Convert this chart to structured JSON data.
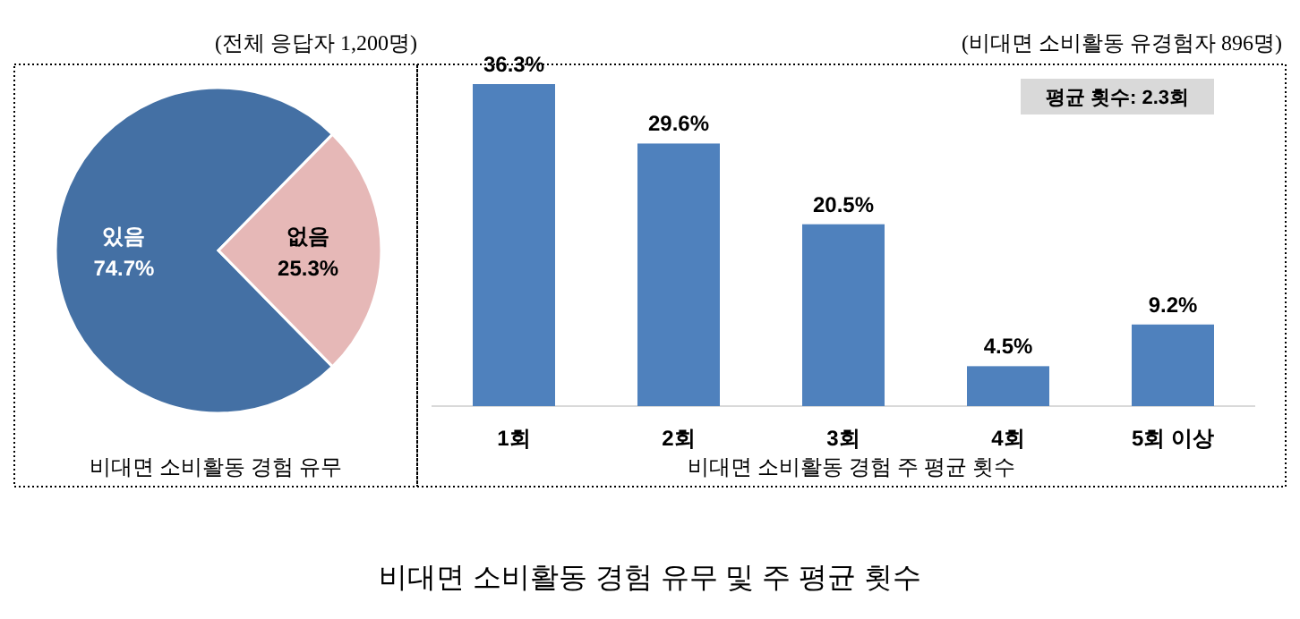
{
  "chart_data": [
    {
      "type": "pie",
      "subtitle": "(전체 응답자 1,200명)",
      "xlabel": "비대면 소비활동 경험 유무",
      "categories": [
        "있음",
        "없음"
      ],
      "values": [
        74.7,
        25.3
      ],
      "colors": [
        "#4470a4",
        "#e6b8b7"
      ],
      "value_labels": [
        "74.7%",
        "25.3%"
      ]
    },
    {
      "type": "bar",
      "subtitle": "(비대면 소비활동 유경험자 896명)",
      "xlabel": "비대면 소비활동 경험 주 평균 횟수",
      "categories": [
        "1회",
        "2회",
        "3회",
        "4회",
        "5회 이상"
      ],
      "values": [
        36.3,
        29.6,
        20.5,
        4.5,
        9.2
      ],
      "color": "#4f81bd",
      "value_labels": [
        "36.3%",
        "29.6%",
        "20.5%",
        "4.5%",
        "9.2%"
      ],
      "annotations": [
        "평균 횟수: 2.3회"
      ]
    },
    {
      "type": "other",
      "title": "비대면 소비활동 경험 유무 및 주 평균 횟수"
    }
  ]
}
